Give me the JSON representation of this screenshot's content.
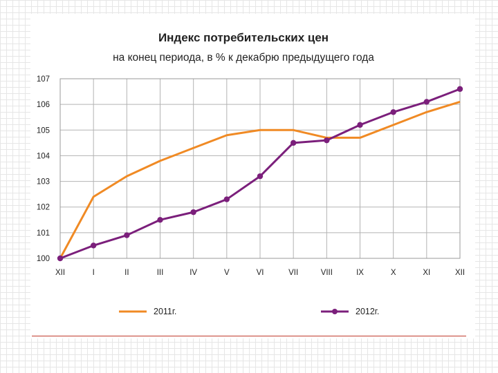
{
  "chart_data": {
    "type": "line",
    "title": "Индекс потребительских цен",
    "subtitle": "на конец периода, в % к декабрю предыдущего года",
    "xlabel": "",
    "ylabel": "",
    "categories": [
      "XII",
      "I",
      "II",
      "III",
      "IV",
      "V",
      "VI",
      "VII",
      "VIII",
      "IX",
      "X",
      "XI",
      "XII"
    ],
    "ylim": [
      100,
      107
    ],
    "yticks": [
      "100",
      "101",
      "102",
      "103",
      "104",
      "105",
      "106",
      "107"
    ],
    "grid": true,
    "legend_position": "bottom",
    "series": [
      {
        "name": "2011г.",
        "color": "#f08a24",
        "marker": "none",
        "values": [
          100.0,
          102.4,
          103.2,
          103.8,
          104.3,
          104.8,
          105.0,
          105.0,
          104.7,
          104.7,
          105.2,
          105.7,
          106.1
        ]
      },
      {
        "name": "2012г.",
        "color": "#7b1f7b",
        "marker": "circle",
        "values": [
          100.0,
          100.5,
          100.9,
          101.5,
          101.8,
          102.3,
          103.2,
          104.5,
          104.6,
          105.2,
          105.7,
          106.1,
          106.6
        ]
      }
    ]
  }
}
